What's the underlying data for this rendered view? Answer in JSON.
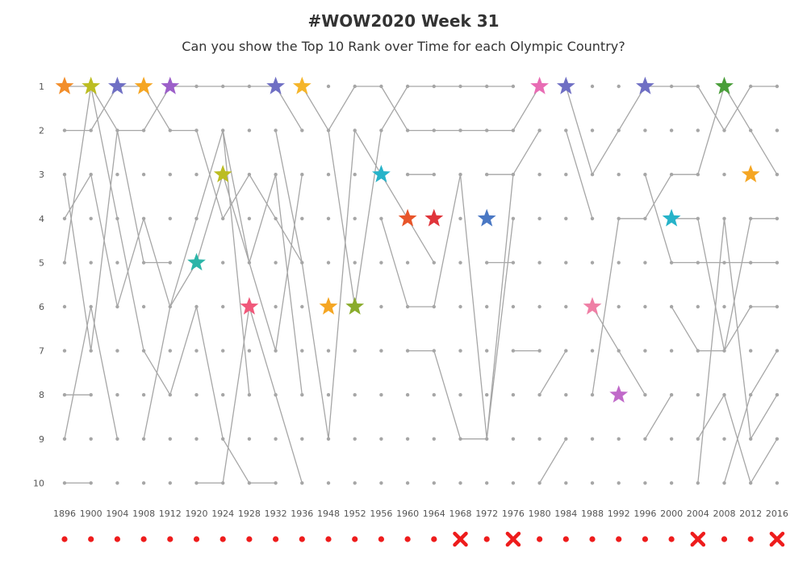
{
  "colors": {
    "line": "#a6a6a6",
    "dot": "#a6a6a6",
    "marker": "#ee1c1c",
    "text": "#333333",
    "tick": "#555555"
  },
  "chart_data": {
    "type": "line",
    "title": "#WOW2020 Week 31",
    "subtitle": "Can you show the Top 10 Rank over Time for each Olympic Country?",
    "xlabel": "",
    "ylabel": "",
    "y_reversed": true,
    "ylim": [
      1,
      10
    ],
    "grid": false,
    "legend": "none",
    "y_ticks": [
      1,
      2,
      3,
      4,
      5,
      6,
      7,
      8,
      9,
      10
    ],
    "years": [
      "1896",
      "1900",
      "1904",
      "1908",
      "1912",
      "1920",
      "1924",
      "1928",
      "1932",
      "1936",
      "1948",
      "1952",
      "1956",
      "1960",
      "1964",
      "1968",
      "1972",
      "1976",
      "1980",
      "1984",
      "1988",
      "1992",
      "1996",
      "2000",
      "2004",
      "2008",
      "2012",
      "2016"
    ],
    "games_held": [
      true,
      true,
      true,
      true,
      true,
      true,
      true,
      true,
      true,
      true,
      true,
      true,
      true,
      true,
      true,
      false,
      true,
      false,
      true,
      true,
      true,
      true,
      true,
      true,
      false,
      true,
      true,
      false
    ],
    "stars": [
      {
        "year": "1896",
        "rank": 1,
        "color": "#f28e2b"
      },
      {
        "year": "1900",
        "rank": 1,
        "color": "#bcbd22"
      },
      {
        "year": "1904",
        "rank": 1,
        "color": "#6f6fc4"
      },
      {
        "year": "1908",
        "rank": 1,
        "color": "#f5a623"
      },
      {
        "year": "1912",
        "rank": 1,
        "color": "#9c5fc9"
      },
      {
        "year": "1920",
        "rank": 5,
        "color": "#2bb5a8"
      },
      {
        "year": "1924",
        "rank": 3,
        "color": "#bcbd22"
      },
      {
        "year": "1928",
        "rank": 6,
        "color": "#f0587a"
      },
      {
        "year": "1932",
        "rank": 1,
        "color": "#6f6fc4"
      },
      {
        "year": "1936",
        "rank": 1,
        "color": "#f5b52a"
      },
      {
        "year": "1948",
        "rank": 6,
        "color": "#f5a623"
      },
      {
        "year": "1952",
        "rank": 6,
        "color": "#8aac2c"
      },
      {
        "year": "1956",
        "rank": 3,
        "color": "#26b3c9"
      },
      {
        "year": "1960",
        "rank": 4,
        "color": "#e8552a"
      },
      {
        "year": "1964",
        "rank": 4,
        "color": "#e0353b"
      },
      {
        "year": "1972",
        "rank": 4,
        "color": "#4a78c4"
      },
      {
        "year": "1980",
        "rank": 1,
        "color": "#e86cb4"
      },
      {
        "year": "1984",
        "rank": 1,
        "color": "#6f6fc4"
      },
      {
        "year": "1988",
        "rank": 6,
        "color": "#ef7fa5"
      },
      {
        "year": "1992",
        "rank": 8,
        "color": "#c069c9"
      },
      {
        "year": "1996",
        "rank": 1,
        "color": "#6f6fc4"
      },
      {
        "year": "2000",
        "rank": 4,
        "color": "#26b3c9"
      },
      {
        "year": "2008",
        "rank": 1,
        "color": "#4a9e3a"
      },
      {
        "year": "2012",
        "rank": 3,
        "color": "#f5a623"
      }
    ],
    "series": [
      {
        "values": [
          [
            0,
            1
          ],
          [
            1,
            1
          ],
          [
            2,
            2
          ],
          [
            3,
            2
          ],
          [
            4,
            1
          ],
          [
            5,
            1
          ],
          [
            6,
            1
          ],
          [
            7,
            1
          ],
          [
            8,
            1
          ],
          [
            9,
            2
          ]
        ]
      },
      {
        "values": [
          [
            0,
            2
          ],
          [
            1,
            2
          ],
          [
            2,
            1
          ],
          [
            3,
            1
          ],
          [
            4,
            2
          ],
          [
            5,
            2
          ],
          [
            6,
            4
          ],
          [
            7,
            3
          ],
          [
            8,
            4
          ],
          [
            9,
            5
          ]
        ]
      },
      {
        "values": [
          [
            0,
            3
          ],
          [
            1,
            7
          ],
          [
            2,
            2
          ],
          [
            3,
            5
          ],
          [
            4,
            5
          ]
        ]
      },
      {
        "values": [
          [
            0,
            4
          ],
          [
            1,
            3
          ],
          [
            2,
            6
          ],
          [
            3,
            4
          ],
          [
            4,
            6
          ],
          [
            5,
            5
          ],
          [
            6,
            3
          ],
          [
            7,
            5
          ],
          [
            8,
            7
          ],
          [
            9,
            3
          ]
        ]
      },
      {
        "values": [
          [
            0,
            5
          ],
          [
            1,
            1
          ],
          [
            2,
            4
          ],
          [
            3,
            7
          ],
          [
            4,
            8
          ],
          [
            5,
            6
          ],
          [
            6,
            9
          ],
          [
            7,
            10
          ]
        ]
      },
      {
        "values": [
          [
            0,
            8
          ],
          [
            1,
            8
          ]
        ]
      },
      {
        "values": [
          [
            0,
            9
          ],
          [
            1,
            6
          ],
          [
            2,
            9
          ]
        ]
      },
      {
        "values": [
          [
            0,
            10
          ],
          [
            1,
            10
          ]
        ]
      },
      {
        "values": [
          [
            3,
            9
          ],
          [
            4,
            6
          ],
          [
            5,
            4
          ],
          [
            6,
            2
          ],
          [
            7,
            5
          ],
          [
            8,
            3
          ],
          [
            9,
            8
          ]
        ]
      },
      {
        "values": [
          [
            5,
            10
          ],
          [
            6,
            10
          ],
          [
            7,
            6
          ],
          [
            8,
            8
          ],
          [
            9,
            10
          ]
        ]
      },
      {
        "values": [
          [
            6,
            2
          ],
          [
            7,
            8
          ]
        ]
      },
      {
        "values": [
          [
            7,
            10
          ],
          [
            8,
            10
          ]
        ]
      },
      {
        "values": [
          [
            8,
            2
          ],
          [
            9,
            5
          ],
          [
            10,
            9
          ],
          [
            11,
            2
          ],
          [
            12,
            3
          ],
          [
            13,
            4
          ],
          [
            14,
            5
          ]
        ]
      },
      {
        "values": [
          [
            9,
            1
          ],
          [
            10,
            2
          ],
          [
            11,
            1
          ],
          [
            12,
            1
          ],
          [
            13,
            2
          ],
          [
            14,
            2
          ],
          [
            16,
            2
          ],
          [
            17,
            2
          ],
          [
            18,
            1
          ]
        ]
      },
      {
        "values": [
          [
            10,
            2
          ],
          [
            11,
            6
          ],
          [
            12,
            2
          ],
          [
            13,
            1
          ],
          [
            14,
            1
          ],
          [
            16,
            1
          ],
          [
            17,
            1
          ]
        ]
      },
      {
        "values": [
          [
            12,
            4
          ],
          [
            13,
            6
          ],
          [
            14,
            6
          ],
          [
            15,
            3
          ],
          [
            16,
            9
          ],
          [
            17,
            3
          ]
        ]
      },
      {
        "values": [
          [
            13,
            3
          ],
          [
            14,
            3
          ]
        ]
      },
      {
        "values": [
          [
            13,
            7
          ],
          [
            14,
            7
          ],
          [
            15,
            9
          ],
          [
            16,
            9
          ],
          [
            17,
            4
          ]
        ]
      },
      {
        "values": [
          [
            16,
            3
          ],
          [
            17,
            3
          ],
          [
            18,
            2
          ]
        ]
      },
      {
        "values": [
          [
            16,
            5
          ],
          [
            17,
            5
          ]
        ]
      },
      {
        "values": [
          [
            17,
            7
          ],
          [
            18,
            7
          ]
        ]
      },
      {
        "values": [
          [
            18,
            8
          ],
          [
            19,
            7
          ]
        ]
      },
      {
        "values": [
          [
            18,
            10
          ],
          [
            19,
            9
          ]
        ]
      },
      {
        "values": [
          [
            19,
            1
          ],
          [
            20,
            3
          ],
          [
            21,
            2
          ],
          [
            22,
            1
          ],
          [
            23,
            1
          ],
          [
            24,
            1
          ],
          [
            25,
            2
          ],
          [
            26,
            1
          ],
          [
            27,
            1
          ]
        ]
      },
      {
        "values": [
          [
            19,
            2
          ],
          [
            20,
            4
          ]
        ]
      },
      {
        "values": [
          [
            20,
            8
          ],
          [
            21,
            4
          ],
          [
            22,
            4
          ],
          [
            23,
            3
          ],
          [
            24,
            3
          ],
          [
            25,
            1
          ],
          [
            26,
            2
          ],
          [
            27,
            3
          ]
        ]
      },
      {
        "values": [
          [
            20,
            6
          ],
          [
            21,
            7
          ],
          [
            22,
            8
          ]
        ]
      },
      {
        "values": [
          [
            22,
            3
          ],
          [
            23,
            5
          ],
          [
            24,
            5
          ],
          [
            25,
            5
          ],
          [
            26,
            5
          ],
          [
            27,
            5
          ]
        ]
      },
      {
        "values": [
          [
            23,
            4
          ],
          [
            24,
            4
          ],
          [
            25,
            7
          ],
          [
            26,
            4
          ],
          [
            27,
            4
          ]
        ]
      },
      {
        "values": [
          [
            22,
            9
          ],
          [
            23,
            8
          ]
        ]
      },
      {
        "values": [
          [
            23,
            6
          ],
          [
            24,
            7
          ],
          [
            25,
            7
          ],
          [
            26,
            6
          ],
          [
            27,
            6
          ]
        ]
      },
      {
        "values": [
          [
            24,
            9
          ],
          [
            25,
            8
          ],
          [
            26,
            10
          ],
          [
            27,
            9
          ]
        ]
      },
      {
        "values": [
          [
            25,
            10
          ],
          [
            26,
            8
          ],
          [
            27,
            7
          ]
        ]
      },
      {
        "values": [
          [
            24,
            10
          ],
          [
            25,
            4
          ],
          [
            26,
            9
          ],
          [
            27,
            8
          ]
        ]
      }
    ]
  }
}
